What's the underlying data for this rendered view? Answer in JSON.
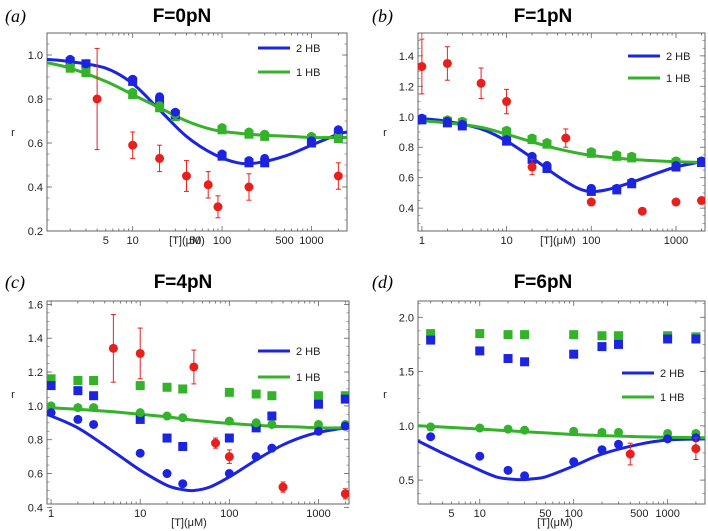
{
  "colors": {
    "red": "#e8201c",
    "blue": "#1c24e0",
    "green": "#34b22a",
    "frame": "#666666"
  },
  "chart_data": [
    {
      "type": "scatter",
      "letter": "(a)",
      "title": "F=0pN",
      "xlabel": "[T](μM)",
      "ylabel": "r",
      "xscale": "log",
      "xlim": [
        1.1,
        2500
      ],
      "ylim": [
        0.2,
        1.1
      ],
      "xticks": [
        5,
        10,
        50,
        100,
        500,
        1000
      ],
      "xtick_labels": [
        "5",
        "10",
        "50",
        "100",
        "500",
        "1000"
      ],
      "yticks": [
        0.2,
        0.4,
        0.6,
        0.8,
        1.0
      ],
      "ytick_labels": [
        "0.2",
        "0.4",
        "0.6",
        "0.8",
        "1.0"
      ],
      "legend": [
        "2 HB",
        "1 HB"
      ],
      "legend_position": "top-right",
      "fit_2hb": {
        "x": [
          1.1,
          2,
          5,
          10,
          20,
          40,
          80,
          150,
          250,
          500,
          1000,
          2000,
          2500
        ],
        "y": [
          0.98,
          0.97,
          0.94,
          0.87,
          0.75,
          0.63,
          0.55,
          0.51,
          0.51,
          0.54,
          0.59,
          0.64,
          0.65
        ]
      },
      "fit_1hb": {
        "x": [
          1.1,
          2,
          5,
          10,
          20,
          40,
          80,
          150,
          300,
          600,
          1000,
          2000,
          2500
        ],
        "y": [
          0.965,
          0.94,
          0.88,
          0.82,
          0.76,
          0.7,
          0.66,
          0.645,
          0.635,
          0.63,
          0.625,
          0.625,
          0.625
        ]
      },
      "circles_2hb": {
        "x": [
          2,
          3,
          10,
          20,
          30,
          100,
          200,
          300,
          1000,
          2000
        ],
        "y": [
          0.98,
          0.96,
          0.89,
          0.81,
          0.74,
          0.55,
          0.52,
          0.53,
          0.61,
          0.66
        ]
      },
      "squares_2hb": {
        "x": [
          2,
          3,
          10,
          20,
          30,
          100,
          200,
          300,
          1000,
          2000
        ],
        "y": [
          0.97,
          0.96,
          0.88,
          0.79,
          0.73,
          0.54,
          0.51,
          0.51,
          0.6,
          0.64
        ]
      },
      "circles_1hb": {
        "x": [
          2,
          3,
          10,
          20,
          30,
          100,
          200,
          300,
          1000,
          2000
        ],
        "y": [
          0.95,
          0.93,
          0.83,
          0.77,
          0.73,
          0.67,
          0.65,
          0.64,
          0.63,
          0.63
        ]
      },
      "squares_1hb": {
        "x": [
          2,
          3,
          10,
          20,
          30,
          100,
          200,
          300,
          1000,
          2000
        ],
        "y": [
          0.94,
          0.92,
          0.82,
          0.76,
          0.72,
          0.66,
          0.64,
          0.63,
          0.62,
          0.62
        ]
      },
      "red_points": {
        "x": [
          4,
          10,
          20,
          40,
          70,
          90,
          200,
          2000
        ],
        "y": [
          0.8,
          0.59,
          0.53,
          0.45,
          0.41,
          0.31,
          0.4,
          0.45
        ],
        "err": [
          0.23,
          0.06,
          0.06,
          0.07,
          0.06,
          0.05,
          0.06,
          0.06
        ]
      }
    },
    {
      "type": "scatter",
      "letter": "(b)",
      "title": "F=1pN",
      "xlabel": "[T](μM)",
      "ylabel": "r",
      "xscale": "log",
      "xlim": [
        0.9,
        2200
      ],
      "ylim": [
        0.25,
        1.55
      ],
      "xticks": [
        1,
        10,
        100,
        1000
      ],
      "xtick_labels": [
        "1",
        "10",
        "100",
        "1000"
      ],
      "yticks": [
        0.4,
        0.6,
        0.8,
        1.0,
        1.2,
        1.4
      ],
      "ytick_labels": [
        "0.4",
        "0.6",
        "0.8",
        "1.0",
        "1.2",
        "1.4"
      ],
      "legend": [
        "2 HB",
        "1 HB"
      ],
      "legend_position": "top-right",
      "fit_2hb": {
        "x": [
          0.9,
          2,
          5,
          10,
          20,
          40,
          70,
          100,
          150,
          300,
          600,
          1000,
          2200
        ],
        "y": [
          0.99,
          0.97,
          0.92,
          0.84,
          0.73,
          0.61,
          0.53,
          0.51,
          0.52,
          0.57,
          0.63,
          0.67,
          0.71
        ]
      },
      "fit_1hb": {
        "x": [
          0.9,
          2,
          5,
          10,
          20,
          40,
          80,
          150,
          300,
          600,
          1000,
          2200
        ],
        "y": [
          0.975,
          0.96,
          0.93,
          0.885,
          0.835,
          0.79,
          0.755,
          0.735,
          0.72,
          0.71,
          0.705,
          0.7
        ]
      },
      "circles_2hb": {
        "x": [
          1,
          2,
          3,
          10,
          20,
          30,
          100,
          200,
          300,
          1000,
          2000
        ],
        "y": [
          0.99,
          0.97,
          0.95,
          0.85,
          0.74,
          0.68,
          0.53,
          0.53,
          0.57,
          0.68,
          0.71
        ]
      },
      "squares_2hb": {
        "x": [
          1,
          2,
          3,
          10,
          20,
          30,
          100,
          200,
          300,
          1000,
          2000
        ],
        "y": [
          0.98,
          0.96,
          0.94,
          0.84,
          0.72,
          0.66,
          0.51,
          0.52,
          0.56,
          0.67,
          0.7
        ]
      },
      "circles_1hb": {
        "x": [
          1,
          2,
          3,
          10,
          20,
          30,
          100,
          200,
          300,
          1000,
          2000
        ],
        "y": [
          0.99,
          0.98,
          0.97,
          0.91,
          0.86,
          0.83,
          0.77,
          0.75,
          0.74,
          0.71,
          0.71
        ]
      },
      "squares_1hb": {
        "x": [
          1,
          2,
          3,
          10,
          20,
          30,
          100,
          200,
          300,
          1000,
          2000
        ],
        "y": [
          0.98,
          0.97,
          0.96,
          0.9,
          0.85,
          0.82,
          0.76,
          0.74,
          0.73,
          0.7,
          0.7
        ]
      },
      "red_points": {
        "x": [
          1,
          2,
          5,
          10,
          20,
          50,
          100,
          400,
          1000,
          2000
        ],
        "y": [
          1.33,
          1.35,
          1.22,
          1.1,
          0.67,
          0.86,
          0.44,
          0.38,
          0.44,
          0.45
        ],
        "err": [
          0.18,
          0.11,
          0.1,
          0.08,
          0.05,
          0.06,
          0,
          0,
          0,
          0
        ]
      }
    },
    {
      "type": "scatter",
      "letter": "(c)",
      "title": "F=4pN",
      "xlabel": "[T](μM)",
      "ylabel": "r",
      "xscale": "log",
      "xlim": [
        0.9,
        2200
      ],
      "ylim": [
        0.42,
        1.62
      ],
      "xticks": [
        1,
        10,
        100,
        1000
      ],
      "xtick_labels": [
        "1",
        "10",
        "100",
        "1000"
      ],
      "yticks": [
        0.4,
        0.6,
        0.8,
        1.0,
        1.2,
        1.4,
        1.6
      ],
      "ytick_labels": [
        "0.4",
        "0.6",
        "0.8",
        "1.0",
        "1.2",
        "1.4",
        "1.6"
      ],
      "legend": [
        "2 HB",
        "1 HB"
      ],
      "legend_position": "center-right",
      "fit_2hb": {
        "x": [
          0.9,
          2,
          5,
          10,
          20,
          30,
          40,
          60,
          100,
          200,
          400,
          800,
          1500,
          2200
        ],
        "y": [
          0.95,
          0.87,
          0.73,
          0.62,
          0.53,
          0.505,
          0.5,
          0.52,
          0.58,
          0.68,
          0.77,
          0.83,
          0.86,
          0.87
        ]
      },
      "fit_1hb": {
        "x": [
          0.9,
          2,
          5,
          10,
          20,
          40,
          80,
          150,
          300,
          600,
          1000,
          2200
        ],
        "y": [
          0.99,
          0.98,
          0.965,
          0.95,
          0.935,
          0.915,
          0.9,
          0.89,
          0.88,
          0.875,
          0.87,
          0.87
        ]
      },
      "circles_2hb": {
        "x": [
          1,
          2,
          3,
          10,
          20,
          30,
          100,
          200,
          300,
          1000,
          2000
        ],
        "y": [
          0.96,
          0.92,
          0.89,
          0.72,
          0.6,
          0.54,
          0.6,
          0.7,
          0.75,
          0.85,
          0.88
        ]
      },
      "squares_2hb": {
        "x": [
          1,
          2,
          3,
          10,
          20,
          30,
          100,
          200,
          300,
          1000,
          2000
        ],
        "y": [
          1.12,
          1.09,
          1.06,
          0.92,
          0.81,
          0.76,
          0.81,
          0.87,
          0.94,
          1.01,
          1.04
        ]
      },
      "circles_1hb": {
        "x": [
          1,
          2,
          3,
          10,
          20,
          30,
          100,
          200,
          300,
          1000,
          2000
        ],
        "y": [
          1.0,
          0.99,
          0.99,
          0.96,
          0.94,
          0.93,
          0.91,
          0.9,
          0.89,
          0.89,
          0.89
        ]
      },
      "squares_1hb": {
        "x": [
          1,
          2,
          3,
          10,
          20,
          30,
          100,
          200,
          300,
          1000,
          2000
        ],
        "y": [
          1.16,
          1.15,
          1.15,
          1.12,
          1.11,
          1.1,
          1.08,
          1.07,
          1.06,
          1.06,
          1.06
        ]
      },
      "red_points": {
        "x": [
          5,
          10,
          40,
          70,
          100,
          400,
          2000
        ],
        "y": [
          1.34,
          1.31,
          1.23,
          0.78,
          0.7,
          0.52,
          0.48
        ],
        "err": [
          0.2,
          0.15,
          0.1,
          0.03,
          0.04,
          0.03,
          0.03
        ]
      }
    },
    {
      "type": "scatter",
      "letter": "(d)",
      "title": "F=6pN",
      "xlabel": "[T](μM)",
      "ylabel": "r",
      "xscale": "log",
      "xlim": [
        2.2,
        2500
      ],
      "ylim": [
        0.28,
        2.15
      ],
      "xticks": [
        5,
        10,
        50,
        100,
        500,
        1000
      ],
      "xtick_labels": [
        "5",
        "10",
        "50",
        "100",
        "500",
        "1000"
      ],
      "yticks": [
        0.5,
        1.0,
        1.5,
        2.0
      ],
      "ytick_labels": [
        "0.5",
        "1.0",
        "1.5",
        "2.0"
      ],
      "legend": [
        "2 HB",
        "1 HB"
      ],
      "legend_position": "center-right",
      "fit_2hb": {
        "x": [
          2.2,
          4,
          8,
          15,
          25,
          35,
          50,
          100,
          200,
          500,
          1000,
          2500
        ],
        "y": [
          0.86,
          0.75,
          0.63,
          0.53,
          0.505,
          0.51,
          0.53,
          0.63,
          0.74,
          0.83,
          0.87,
          0.88
        ]
      },
      "fit_1hb": {
        "x": [
          2.2,
          5,
          10,
          20,
          50,
          100,
          200,
          500,
          1000,
          2500
        ],
        "y": [
          1.0,
          0.985,
          0.97,
          0.955,
          0.935,
          0.92,
          0.91,
          0.9,
          0.895,
          0.89
        ]
      },
      "circles_2hb": {
        "x": [
          3,
          10,
          20,
          30,
          100,
          200,
          300,
          1000,
          2000
        ],
        "y": [
          0.9,
          0.72,
          0.59,
          0.54,
          0.67,
          0.78,
          0.83,
          0.88,
          0.89
        ]
      },
      "squares_2hb": {
        "x": [
          3,
          10,
          20,
          30,
          100,
          200,
          300,
          1000,
          2000
        ],
        "y": [
          1.79,
          1.69,
          1.62,
          1.59,
          1.66,
          1.73,
          1.75,
          1.8,
          1.8
        ]
      },
      "circles_1hb": {
        "x": [
          3,
          10,
          20,
          30,
          100,
          200,
          300,
          1000,
          2000
        ],
        "y": [
          0.99,
          0.98,
          0.97,
          0.96,
          0.95,
          0.94,
          0.94,
          0.93,
          0.93
        ]
      },
      "squares_1hb": {
        "x": [
          3,
          10,
          20,
          30,
          100,
          200,
          300,
          1000,
          2000
        ],
        "y": [
          1.85,
          1.85,
          1.84,
          1.84,
          1.84,
          1.83,
          1.83,
          1.83,
          1.82
        ]
      },
      "red_points": {
        "x": [
          400,
          2000
        ],
        "y": [
          0.74,
          0.79
        ],
        "err": [
          0.1,
          0.1
        ]
      }
    }
  ]
}
